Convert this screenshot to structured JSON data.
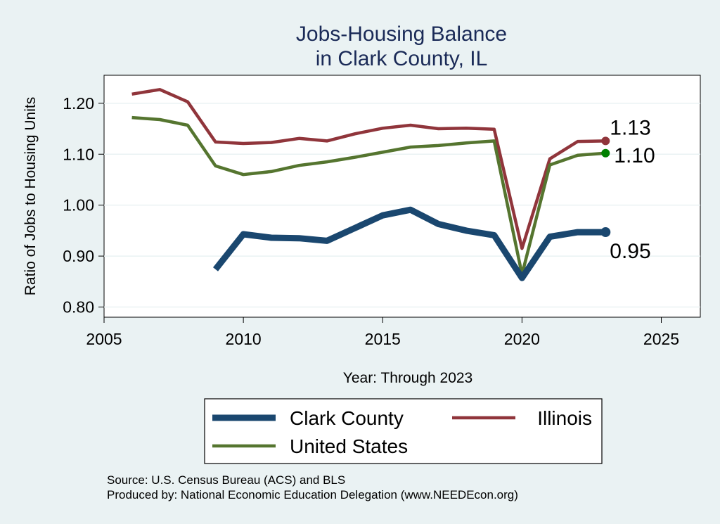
{
  "chart_data": {
    "type": "line",
    "title": [
      "Jobs-Housing Balance",
      "in Clark County, IL"
    ],
    "xlabel": "Year: Through 2023",
    "ylabel": "Ratio of Jobs to Housing Units",
    "xlim": [
      2005,
      2026.4
    ],
    "ylim": [
      0.78,
      1.255
    ],
    "x_ticks": [
      2005,
      2010,
      2015,
      2020,
      2025
    ],
    "y_ticks": [
      0.8,
      0.9,
      1.0,
      1.1,
      1.2
    ],
    "y_tick_labels": [
      "0.80",
      "0.90",
      "1.00",
      "1.10",
      "1.20"
    ],
    "grid": true,
    "legend_position": "bottom",
    "series": [
      {
        "name": "Clark County",
        "color": "#1a476f",
        "emphasis": "thick",
        "x": [
          2009,
          2010,
          2011,
          2012,
          2013,
          2014,
          2015,
          2016,
          2017,
          2018,
          2019,
          2020,
          2021,
          2022,
          2023
        ],
        "values": [
          0.874,
          0.943,
          0.936,
          0.935,
          0.93,
          0.955,
          0.98,
          0.991,
          0.963,
          0.95,
          0.941,
          0.857,
          0.938,
          0.947,
          0.947
        ],
        "end_label": "0.95"
      },
      {
        "name": "Illinois",
        "color": "#90353b",
        "emphasis": "normal",
        "x": [
          2006,
          2007,
          2008,
          2009,
          2010,
          2011,
          2012,
          2013,
          2014,
          2015,
          2016,
          2017,
          2018,
          2019,
          2020,
          2021,
          2022,
          2023
        ],
        "values": [
          1.218,
          1.227,
          1.203,
          1.124,
          1.121,
          1.123,
          1.131,
          1.126,
          1.14,
          1.151,
          1.157,
          1.15,
          1.151,
          1.149,
          0.915,
          1.091,
          1.125,
          1.126
        ],
        "end_label": "1.13"
      },
      {
        "name": "United States",
        "color": "#55752f",
        "emphasis": "normal",
        "x": [
          2006,
          2007,
          2008,
          2009,
          2010,
          2011,
          2012,
          2013,
          2014,
          2015,
          2016,
          2017,
          2018,
          2019,
          2020,
          2021,
          2022,
          2023
        ],
        "values": [
          1.172,
          1.168,
          1.157,
          1.077,
          1.06,
          1.066,
          1.078,
          1.085,
          1.094,
          1.104,
          1.114,
          1.117,
          1.122,
          1.126,
          0.864,
          1.079,
          1.098,
          1.102
        ],
        "end_label": "1.10",
        "end_marker_color": "#008000"
      }
    ],
    "legend": [
      "Clark County",
      "Illinois",
      "United States"
    ]
  },
  "source": {
    "line1": "Source: U.S. Census Bureau (ACS) and BLS",
    "line2": "Produced by: National Economic Education Delegation (www.NEEDEcon.org)"
  }
}
